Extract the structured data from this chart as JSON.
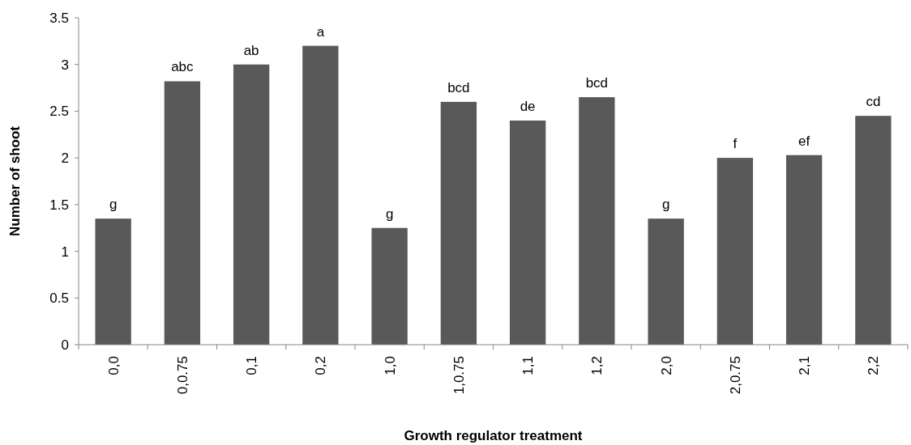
{
  "chart_data": {
    "type": "bar",
    "xlabel": "Growth regulator treatment",
    "ylabel": "Number of shoot",
    "categories": [
      "0,0",
      "0,0.75",
      "0,1",
      "0,2",
      "1,0",
      "1,0.75",
      "1,1",
      "1,2",
      "2,0",
      "2,0.75",
      "2,1",
      "2,2"
    ],
    "values": [
      1.35,
      2.82,
      3.0,
      3.2,
      1.25,
      2.6,
      2.4,
      2.65,
      1.35,
      2.0,
      2.03,
      2.45
    ],
    "color": "#595959",
    "ylim": [
      0,
      3.5
    ],
    "yticks": [
      0,
      0.5,
      1,
      1.5,
      2,
      2.5,
      3,
      3.5
    ],
    "grid": false,
    "annotations": [
      {
        "text": "g",
        "x": "0,0",
        "y": 1.35
      },
      {
        "text": "abc",
        "x": "0,0.75",
        "y": 2.82
      },
      {
        "text": "ab",
        "x": "0,1",
        "y": 3.0
      },
      {
        "text": "a",
        "x": "0,2",
        "y": 3.2
      },
      {
        "text": "g",
        "x": "1,0",
        "y": 1.25
      },
      {
        "text": "bcd",
        "x": "1,0.75",
        "y": 2.6
      },
      {
        "text": "de",
        "x": "1,1",
        "y": 2.4
      },
      {
        "text": "bcd",
        "x": "1,2",
        "y": 2.65
      },
      {
        "text": "g",
        "x": "2,0",
        "y": 1.35
      },
      {
        "text": "f",
        "x": "2,0.75",
        "y": 2.0
      },
      {
        "text": "ef",
        "x": "2,1",
        "y": 2.03
      },
      {
        "text": "cd",
        "x": "2,2",
        "y": 2.45
      }
    ]
  }
}
